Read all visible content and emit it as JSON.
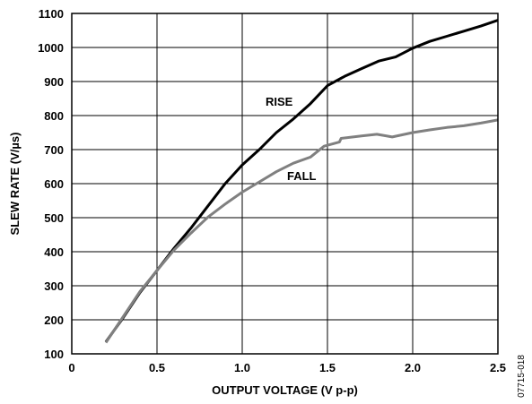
{
  "figure_id": "07715-018",
  "chart_data": {
    "type": "line",
    "xlabel": "OUTPUT VOLTAGE (V p-p)",
    "ylabel": "SLEW RATE (V/µs)",
    "xlim": [
      0,
      2.5
    ],
    "ylim": [
      100,
      1100
    ],
    "x_ticks": [
      0,
      0.5,
      1.0,
      1.5,
      2.0,
      2.5
    ],
    "x_tick_labels": [
      "0",
      "0.5",
      "1.0",
      "1.5",
      "2.0",
      "2.5"
    ],
    "y_ticks": [
      100,
      200,
      300,
      400,
      500,
      600,
      700,
      800,
      900,
      1000,
      1100
    ],
    "y_tick_labels": [
      "100",
      "200",
      "300",
      "400",
      "500",
      "600",
      "700",
      "800",
      "900",
      "1000",
      "1100"
    ],
    "grid": true,
    "series": [
      {
        "name": "RISE",
        "color": "#000000",
        "points": [
          [
            0.2,
            135
          ],
          [
            0.3,
            205
          ],
          [
            0.4,
            280
          ],
          [
            0.5,
            345
          ],
          [
            0.6,
            410
          ],
          [
            0.7,
            470
          ],
          [
            0.8,
            535
          ],
          [
            0.9,
            600
          ],
          [
            1.0,
            655
          ],
          [
            1.1,
            700
          ],
          [
            1.2,
            750
          ],
          [
            1.3,
            790
          ],
          [
            1.4,
            835
          ],
          [
            1.5,
            888
          ],
          [
            1.6,
            915
          ],
          [
            1.7,
            938
          ],
          [
            1.8,
            960
          ],
          [
            1.9,
            972
          ],
          [
            2.0,
            998
          ],
          [
            2.1,
            1018
          ],
          [
            2.2,
            1033
          ],
          [
            2.3,
            1048
          ],
          [
            2.4,
            1063
          ],
          [
            2.5,
            1080
          ]
        ]
      },
      {
        "name": "FALL",
        "color": "#808080",
        "points": [
          [
            0.2,
            133
          ],
          [
            0.3,
            208
          ],
          [
            0.4,
            283
          ],
          [
            0.5,
            345
          ],
          [
            0.6,
            405
          ],
          [
            0.7,
            455
          ],
          [
            0.8,
            502
          ],
          [
            0.9,
            540
          ],
          [
            1.0,
            575
          ],
          [
            1.1,
            605
          ],
          [
            1.2,
            635
          ],
          [
            1.3,
            660
          ],
          [
            1.4,
            678
          ],
          [
            1.48,
            710
          ],
          [
            1.57,
            722
          ],
          [
            1.58,
            733
          ],
          [
            1.7,
            740
          ],
          [
            1.79,
            745
          ],
          [
            1.88,
            737
          ],
          [
            2.0,
            750
          ],
          [
            2.1,
            758
          ],
          [
            2.2,
            765
          ],
          [
            2.3,
            770
          ],
          [
            2.4,
            778
          ],
          [
            2.5,
            787
          ]
        ]
      }
    ]
  }
}
